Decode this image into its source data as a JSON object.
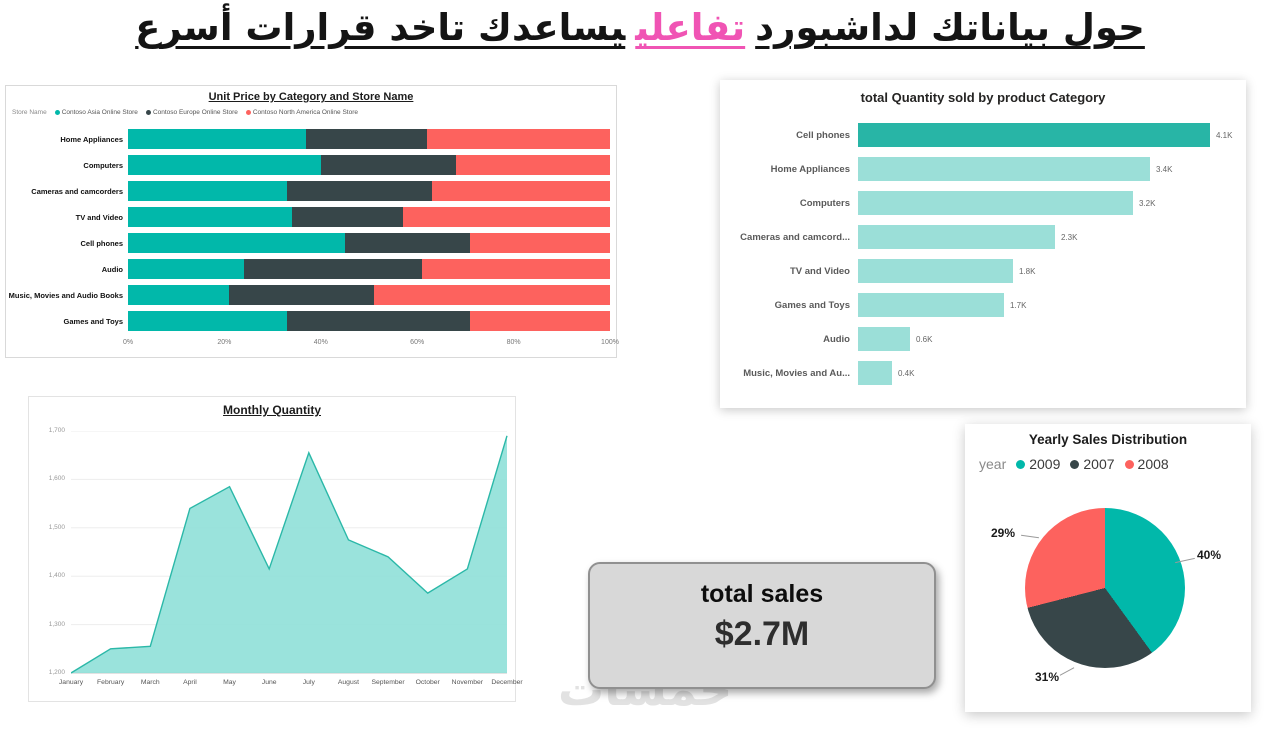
{
  "page": {
    "watermark": "خمسات"
  },
  "title": {
    "pre": "حول بياناتك لداشبورد",
    "highlight": "تفاعلي",
    "post": "يساعدك تاخد قرارات أسرع",
    "highlight_color": "#f054b4"
  },
  "palette": {
    "teal": "#01B8AA",
    "dark": "#374649",
    "coral": "#FD625E",
    "light_teal": "#9BDFD8"
  },
  "chart_data": [
    {
      "type": "bar",
      "variant": "stacked-horizontal-100",
      "title": "Unit Price by Category and Store Name",
      "legend_title": "Store Name",
      "legend_position": "top-left",
      "categories": [
        "Home Appliances",
        "Computers",
        "Cameras and camcorders",
        "TV and Video",
        "Cell phones",
        "Audio",
        "Music, Movies and Audio Books",
        "Games and Toys"
      ],
      "series": [
        {
          "name": "Contoso Asia Online Store",
          "color": "#01B8AA",
          "values": [
            37,
            40,
            33,
            34,
            45,
            24,
            21,
            33
          ]
        },
        {
          "name": "Contoso Europe Online Store",
          "color": "#374649",
          "values": [
            25,
            28,
            30,
            23,
            26,
            37,
            30,
            38
          ]
        },
        {
          "name": "Contoso North America Online Store",
          "color": "#FD625E",
          "values": [
            38,
            32,
            37,
            43,
            29,
            39,
            49,
            29
          ]
        }
      ],
      "x_ticks": [
        "0%",
        "20%",
        "40%",
        "60%",
        "80%",
        "100%"
      ],
      "xlim": [
        0,
        100
      ]
    },
    {
      "type": "bar",
      "variant": "horizontal",
      "title": "total Quantity sold by product Category",
      "categories": [
        "Cell phones",
        "Home Appliances",
        "Computers",
        "Cameras and camcord...",
        "TV and Video",
        "Games and Toys",
        "Audio",
        "Music, Movies and Au..."
      ],
      "values": [
        4.1,
        3.4,
        3.2,
        2.3,
        1.8,
        1.7,
        0.6,
        0.4
      ],
      "labels": [
        "4.1K",
        "3.4K",
        "3.2K",
        "2.3K",
        "1.8K",
        "1.7K",
        "0.6K",
        "0.4K"
      ],
      "bar_color": "#9BDFD8",
      "first_bar_color": "#28B5A6"
    },
    {
      "type": "area",
      "title": "Monthly Quantity",
      "categories": [
        "January",
        "February",
        "March",
        "April",
        "May",
        "June",
        "July",
        "August",
        "September",
        "October",
        "November",
        "December"
      ],
      "values": [
        1200,
        1250,
        1255,
        1540,
        1585,
        1415,
        1655,
        1475,
        1440,
        1365,
        1415,
        1690
      ],
      "ylim": [
        1200,
        1700
      ],
      "y_ticks": [
        "1,700",
        "1,600",
        "1,500",
        "1,400",
        "1,300",
        "1,200"
      ],
      "fill_color": "#8FE0D8",
      "line_color": "#2BB8A8",
      "grid": true
    },
    {
      "type": "card",
      "title": "total sales",
      "value": "$2.7M"
    },
    {
      "type": "pie",
      "title": "Yearly Sales Distribution",
      "legend_title": "year",
      "legend_position": "top-left",
      "slices": [
        {
          "name": "2009",
          "percent": 40,
          "color": "#01B8AA",
          "label": "40%"
        },
        {
          "name": "2007",
          "percent": 31,
          "color": "#374649",
          "label": "31%"
        },
        {
          "name": "2008",
          "percent": 29,
          "color": "#FD625E",
          "label": "29%"
        }
      ]
    }
  ]
}
